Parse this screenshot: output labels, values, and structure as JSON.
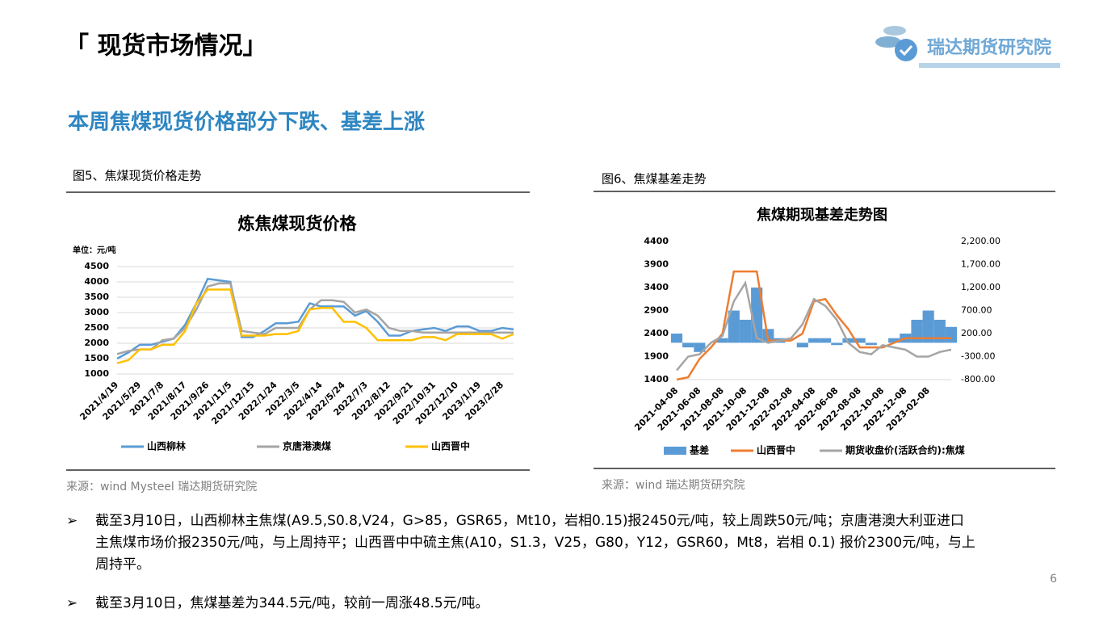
{
  "header": {
    "title": "「 现货市场情况」",
    "logo": "瑞达期货研究院"
  },
  "subtitle": "本周焦煤现货价格部分下跌、基差上涨",
  "chart_data": [
    {
      "type": "line",
      "caption": "图5、焦煤现货价格走势",
      "title": "炼焦煤现货价格",
      "unit": "单位：元/吨",
      "source": "来源：wind   Mysteel   瑞达期货研究院",
      "categories": [
        "2021/4/19",
        null,
        "2021/5/29",
        null,
        "2021/7/8",
        null,
        "2021/8/17",
        null,
        "2021/9/26",
        null,
        "2021/11/5",
        null,
        "2021/12/15",
        null,
        "2022/1/24",
        null,
        "2022/3/5",
        null,
        "2022/4/14",
        null,
        "2022/5/24",
        null,
        "2022/7/3",
        null,
        "2022/8/12",
        null,
        "2022/9/21",
        null,
        "2022/10/31",
        null,
        "2022/12/10",
        null,
        "2023/1/19",
        null,
        "2023/2/28",
        null
      ],
      "series": [
        {
          "name": "山西柳林",
          "color": "#5b9bd5",
          "values": [
            1500,
            1700,
            1950,
            1950,
            2050,
            2150,
            2600,
            3300,
            4100,
            4050,
            4000,
            2200,
            2200,
            2400,
            2650,
            2650,
            2700,
            3300,
            3200,
            3200,
            3200,
            2900,
            3050,
            2700,
            2250,
            2250,
            2400,
            2450,
            2500,
            2400,
            2550,
            2550,
            2400,
            2400,
            2500,
            2450
          ]
        },
        {
          "name": "京唐港澳煤",
          "color": "#a5a5a5",
          "values": [
            1650,
            1750,
            1800,
            1800,
            2100,
            2150,
            2500,
            3100,
            3850,
            3950,
            3950,
            2400,
            2350,
            2300,
            2500,
            2500,
            2500,
            3100,
            3400,
            3400,
            3350,
            3000,
            3100,
            2900,
            2500,
            2400,
            2400,
            2350,
            2350,
            2350,
            2350,
            2350,
            2350,
            2350,
            2350,
            2350
          ]
        },
        {
          "name": "山西晋中",
          "color": "#ffc000",
          "values": [
            1350,
            1450,
            1800,
            1800,
            1950,
            1950,
            2400,
            3300,
            3750,
            3750,
            3750,
            2250,
            2250,
            2250,
            2300,
            2300,
            2400,
            3100,
            3150,
            3150,
            2700,
            2700,
            2500,
            2100,
            2100,
            2100,
            2100,
            2200,
            2200,
            2100,
            2300,
            2300,
            2300,
            2300,
            2150,
            2300
          ]
        }
      ],
      "ylim": [
        1000,
        4500
      ],
      "yticks": [
        1000,
        1500,
        2000,
        2500,
        3000,
        3500,
        4000,
        4500
      ],
      "grid": true
    },
    {
      "type": "combo",
      "caption": "图6、焦煤基差走势",
      "title": "焦煤期现基差走势图",
      "source": "来源：wind   瑞达期货研究院",
      "categories": [
        "2021-04-08",
        null,
        "2021-06-08",
        null,
        "2021-08-08",
        null,
        "2021-10-08",
        null,
        "2021-12-08",
        null,
        "2022-02-08",
        null,
        "2022-04-08",
        null,
        "2022-06-08",
        null,
        "2022-08-08",
        null,
        "2022-10-08",
        null,
        "2022-12-08",
        null,
        "2023-02-08",
        null,
        null
      ],
      "series": [
        {
          "name": "基差",
          "type": "bar",
          "axis": "y2",
          "color": "#5b9bd5",
          "values": [
            200,
            -100,
            -200,
            0,
            100,
            700,
            500,
            1200,
            300,
            100,
            0,
            -100,
            100,
            100,
            -50,
            100,
            100,
            -50,
            0,
            100,
            200,
            500,
            700,
            500,
            344.5
          ]
        },
        {
          "name": "山西晋中",
          "type": "line",
          "color": "#ed7d31",
          "values": [
            1400,
            1450,
            1850,
            2100,
            2400,
            3750,
            3750,
            3750,
            2250,
            2250,
            2250,
            2400,
            3100,
            3150,
            2800,
            2500,
            2100,
            2100,
            2100,
            2200,
            2300,
            2300,
            2300,
            2300,
            2300
          ]
        },
        {
          "name": "期货收盘价(活跃合约):焦煤",
          "type": "line",
          "color": "#a5a5a5",
          "values": [
            1600,
            1900,
            1950,
            2200,
            2350,
            3100,
            3500,
            2300,
            2200,
            2250,
            2300,
            2600,
            3150,
            3000,
            2700,
            2200,
            2000,
            1950,
            2150,
            2100,
            2050,
            1900,
            1900,
            2000,
            2050
          ]
        }
      ],
      "ylim": [
        1400,
        4400
      ],
      "yticks": [
        1400,
        1900,
        2400,
        2900,
        3400,
        3900,
        4400
      ],
      "y2lim": [
        -800,
        2200
      ],
      "y2ticks": [
        {
          "value": -800,
          "label": "-800.00"
        },
        {
          "value": -300,
          "label": "-300.00"
        },
        {
          "value": 200,
          "label": "200.00"
        },
        {
          "value": 700,
          "label": "700.00"
        },
        {
          "value": 1200,
          "label": "1,200.00"
        },
        {
          "value": 1700,
          "label": "1,700.00"
        },
        {
          "value": 2200,
          "label": "2,200.00"
        }
      ],
      "grid": false
    }
  ],
  "bullets": [
    "截至3月10日，山西柳林主焦煤(A9.5,S0.8,V24，G>85，GSR65，Mt10，岩相0.15)报2450元/吨，较上周跌50元/吨；京唐港澳大利亚进口主焦煤市场价报2350元/吨，与上周持平；山西晋中中硫主焦(A10，S1.3，V25，G80，Y12，GSR60，Mt8，岩相 0.1) 报价2300元/吨，与上周持平。",
    "截至3月10日，焦煤基差为344.5元/吨，较前一周涨48.5元/吨。"
  ],
  "page_number": "6"
}
